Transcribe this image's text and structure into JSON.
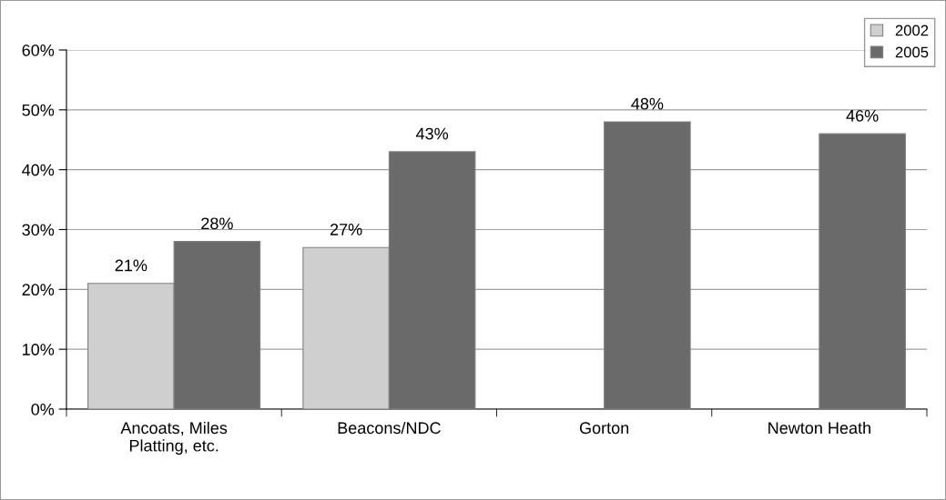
{
  "chart_data": {
    "type": "bar",
    "categories": [
      "Ancoats, Miles\nPlatting, etc.",
      "Beacons/NDC",
      "Gorton",
      "Newton Heath"
    ],
    "series": [
      {
        "name": "2002",
        "color": "#cfcfcf",
        "values": [
          21,
          27,
          null,
          null
        ]
      },
      {
        "name": "2005",
        "color": "#6a6a6a",
        "values": [
          28,
          43,
          48,
          46
        ]
      }
    ],
    "ylim": [
      0,
      60
    ],
    "yticks": [
      {
        "value": 0,
        "label": "0%"
      },
      {
        "value": 10,
        "label": "10%"
      },
      {
        "value": 20,
        "label": "20%"
      },
      {
        "value": 30,
        "label": "30%"
      },
      {
        "value": 40,
        "label": "40%"
      },
      {
        "value": 50,
        "label": "50%"
      },
      {
        "value": 60,
        "label": "60%"
      }
    ],
    "value_labels": [
      [
        "21%",
        "27%",
        null,
        null
      ],
      [
        "28%",
        "43%",
        "48%",
        "46%"
      ]
    ],
    "grid": "y",
    "legend": "top right"
  }
}
